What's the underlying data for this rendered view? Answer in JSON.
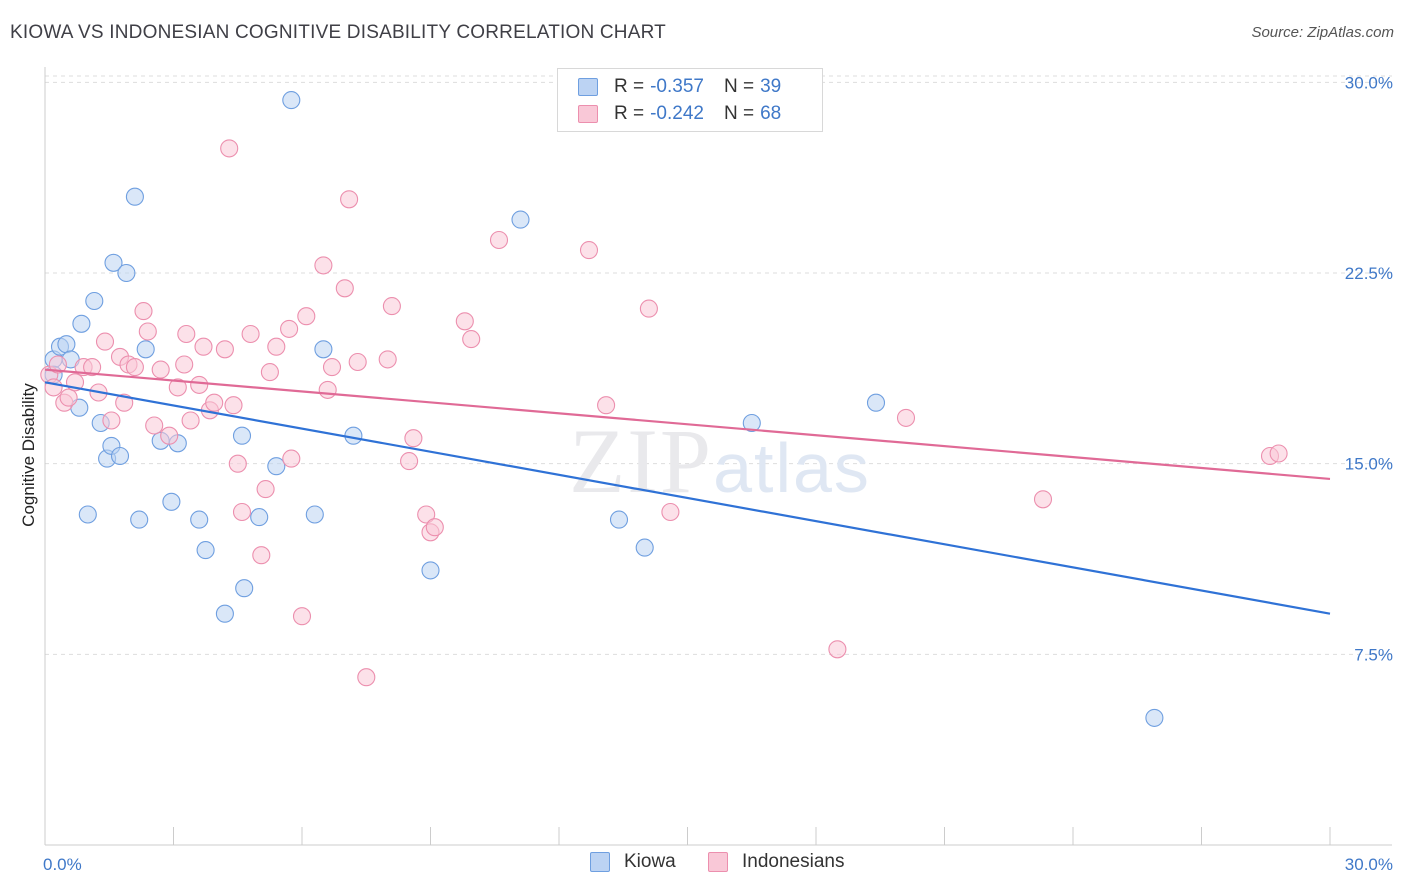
{
  "title": "KIOWA VS INDONESIAN COGNITIVE DISABILITY CORRELATION CHART",
  "source": "Source: ZipAtlas.com",
  "colors": {
    "kiowa_fill": "#bcd3f3",
    "kiowa_stroke": "#6f9fe0",
    "kiowa_line": "#2f72d6",
    "indo_fill": "#f9c8d7",
    "indo_stroke": "#ec8fae",
    "indo_line": "#e06a96",
    "grid": "#dddddd",
    "axis_text": "#3f78c8"
  },
  "legend": {
    "rows": [
      {
        "r_label": "R =",
        "r_value": "-0.357",
        "n_label": "N =",
        "n_value": "39"
      },
      {
        "r_label": "R =",
        "r_value": "-0.242",
        "n_label": "N =",
        "n_value": "68"
      }
    ]
  },
  "bottom_legend": [
    "Kiowa",
    "Indonesians"
  ],
  "chart_data": {
    "type": "scatter",
    "title": "KIOWA VS INDONESIAN COGNITIVE DISABILITY CORRELATION CHART",
    "xlabel": "",
    "ylabel": "Cognitive Disability",
    "xlim": [
      0,
      30
    ],
    "ylim": [
      0,
      30.8
    ],
    "x_tick_labels": [
      "0.0%",
      "30.0%"
    ],
    "y_ticks": [
      7.5,
      15.0,
      22.5,
      30.0
    ],
    "y_tick_labels": [
      "7.5%",
      "15.0%",
      "22.5%",
      "30.0%"
    ],
    "watermark": "ZIPatlas",
    "series": [
      {
        "name": "Kiowa",
        "r": -0.357,
        "n": 39,
        "trend": {
          "x": [
            0,
            30
          ],
          "y": [
            18.2,
            9.1
          ]
        },
        "points": [
          [
            0.2,
            19.1
          ],
          [
            0.35,
            19.6
          ],
          [
            0.5,
            19.7
          ],
          [
            0.6,
            19.1
          ],
          [
            0.8,
            17.2
          ],
          [
            0.85,
            20.5
          ],
          [
            1.0,
            13.0
          ],
          [
            1.15,
            21.4
          ],
          [
            1.3,
            16.6
          ],
          [
            1.45,
            15.2
          ],
          [
            1.55,
            15.7
          ],
          [
            1.6,
            22.9
          ],
          [
            1.75,
            15.3
          ],
          [
            1.9,
            22.5
          ],
          [
            2.1,
            25.5
          ],
          [
            2.2,
            12.8
          ],
          [
            2.35,
            19.5
          ],
          [
            2.7,
            15.9
          ],
          [
            2.95,
            13.5
          ],
          [
            3.1,
            15.8
          ],
          [
            3.6,
            12.8
          ],
          [
            3.75,
            11.6
          ],
          [
            4.2,
            9.1
          ],
          [
            4.6,
            16.1
          ],
          [
            4.65,
            10.1
          ],
          [
            5.0,
            12.9
          ],
          [
            5.4,
            14.9
          ],
          [
            5.75,
            29.3
          ],
          [
            6.3,
            13.0
          ],
          [
            6.5,
            19.5
          ],
          [
            7.2,
            16.1
          ],
          [
            9.0,
            10.8
          ],
          [
            11.1,
            24.6
          ],
          [
            13.4,
            12.8
          ],
          [
            14.0,
            11.7
          ],
          [
            16.5,
            16.6
          ],
          [
            19.4,
            17.4
          ],
          [
            25.9,
            5.0
          ],
          [
            0.2,
            18.5
          ]
        ]
      },
      {
        "name": "Indonesians",
        "r": -0.242,
        "n": 68,
        "trend": {
          "x": [
            0,
            30
          ],
          "y": [
            18.7,
            14.4
          ]
        },
        "points": [
          [
            0.1,
            18.5
          ],
          [
            0.2,
            18.0
          ],
          [
            0.3,
            18.9
          ],
          [
            0.45,
            17.4
          ],
          [
            0.55,
            17.6
          ],
          [
            0.7,
            18.2
          ],
          [
            0.9,
            18.8
          ],
          [
            1.1,
            18.8
          ],
          [
            1.25,
            17.8
          ],
          [
            1.4,
            19.8
          ],
          [
            1.55,
            16.7
          ],
          [
            1.75,
            19.2
          ],
          [
            1.85,
            17.4
          ],
          [
            1.95,
            18.9
          ],
          [
            2.1,
            18.8
          ],
          [
            2.3,
            21.0
          ],
          [
            2.4,
            20.2
          ],
          [
            2.55,
            16.5
          ],
          [
            2.7,
            18.7
          ],
          [
            2.9,
            16.1
          ],
          [
            3.1,
            18.0
          ],
          [
            3.25,
            18.9
          ],
          [
            3.3,
            20.1
          ],
          [
            3.4,
            16.7
          ],
          [
            3.6,
            18.1
          ],
          [
            3.7,
            19.6
          ],
          [
            3.85,
            17.1
          ],
          [
            3.95,
            17.4
          ],
          [
            4.2,
            19.5
          ],
          [
            4.3,
            27.4
          ],
          [
            4.4,
            17.3
          ],
          [
            4.5,
            15.0
          ],
          [
            4.6,
            13.1
          ],
          [
            4.8,
            20.1
          ],
          [
            5.05,
            11.4
          ],
          [
            5.15,
            14.0
          ],
          [
            5.25,
            18.6
          ],
          [
            5.4,
            19.6
          ],
          [
            5.7,
            20.3
          ],
          [
            5.75,
            15.2
          ],
          [
            6.0,
            9.0
          ],
          [
            6.1,
            20.8
          ],
          [
            6.5,
            22.8
          ],
          [
            6.6,
            17.9
          ],
          [
            6.7,
            18.8
          ],
          [
            7.0,
            21.9
          ],
          [
            7.1,
            25.4
          ],
          [
            7.3,
            19.0
          ],
          [
            7.5,
            6.6
          ],
          [
            8.0,
            19.1
          ],
          [
            8.1,
            21.2
          ],
          [
            8.5,
            15.1
          ],
          [
            8.6,
            16.0
          ],
          [
            8.9,
            13.0
          ],
          [
            9.0,
            12.3
          ],
          [
            9.1,
            12.5
          ],
          [
            9.8,
            20.6
          ],
          [
            9.95,
            19.9
          ],
          [
            10.6,
            23.8
          ],
          [
            12.7,
            23.4
          ],
          [
            13.1,
            17.3
          ],
          [
            14.1,
            21.1
          ],
          [
            14.6,
            13.1
          ],
          [
            18.5,
            7.7
          ],
          [
            20.1,
            16.8
          ],
          [
            23.3,
            13.6
          ],
          [
            28.6,
            15.3
          ],
          [
            28.8,
            15.4
          ]
        ]
      }
    ]
  }
}
